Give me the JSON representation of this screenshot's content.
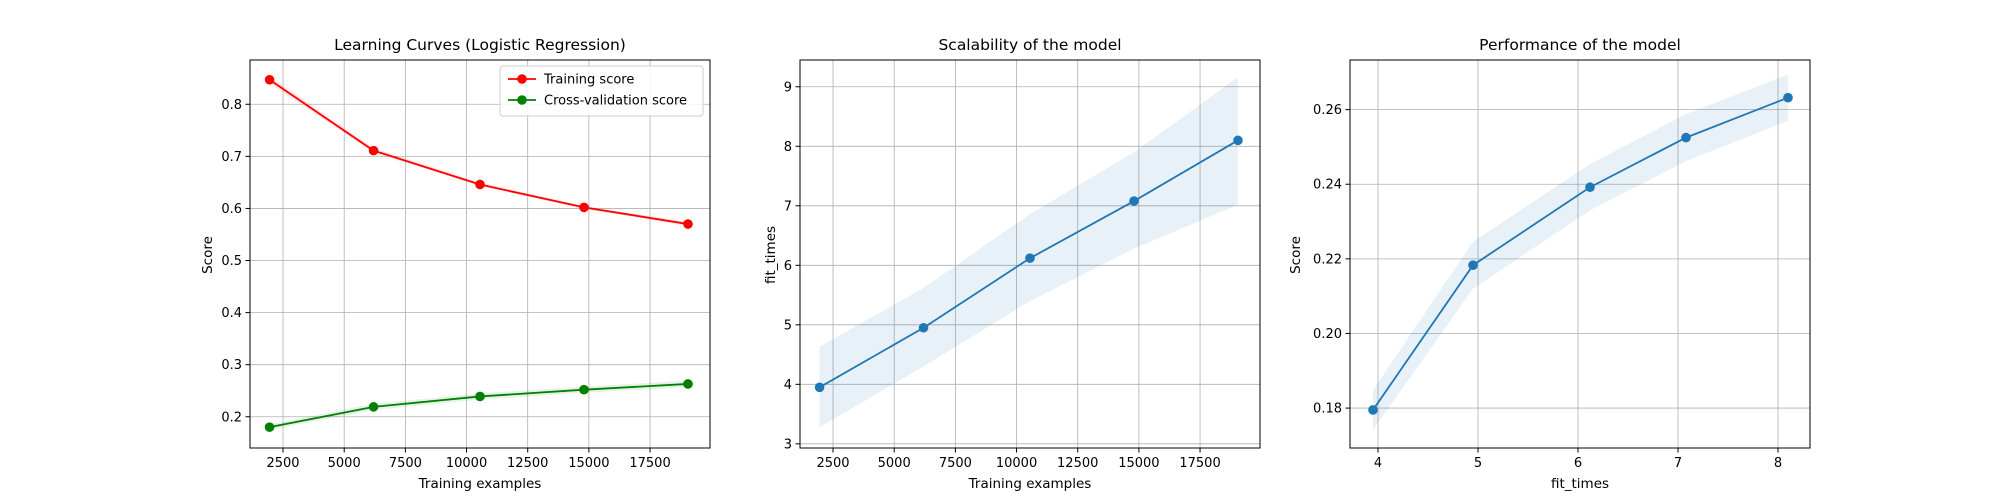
{
  "chart_data": [
    {
      "type": "line",
      "title": "Learning Curves (Logistic Regression)",
      "xlabel": "Training examples",
      "ylabel": "Score",
      "xlim": [
        1150,
        19950
      ],
      "ylim": [
        0.14,
        0.885
      ],
      "xticks": [
        2500,
        5000,
        7500,
        10000,
        12500,
        15000,
        17500
      ],
      "xtick_labels": [
        "2500",
        "5000",
        "7500",
        "10000",
        "12500",
        "15000",
        "17500"
      ],
      "yticks": [
        0.2,
        0.3,
        0.4,
        0.5,
        0.6,
        0.7,
        0.8
      ],
      "ytick_labels": [
        "0.2",
        "0.3",
        "0.4",
        "0.5",
        "0.6",
        "0.7",
        "0.8"
      ],
      "grid": true,
      "legend": "upper right",
      "x": [
        1950,
        6200,
        10550,
        14800,
        19050
      ],
      "series": [
        {
          "name": "Training score",
          "color": "#ff0000",
          "values": [
            0.847,
            0.711,
            0.646,
            0.602,
            0.57
          ],
          "band_low": [
            0.84,
            0.707,
            0.643,
            0.599,
            0.566
          ],
          "band_high": [
            0.854,
            0.716,
            0.65,
            0.605,
            0.574
          ]
        },
        {
          "name": "Cross-validation score",
          "color": "#008000",
          "values": [
            0.18,
            0.219,
            0.239,
            0.252,
            0.263
          ],
          "band_low": [
            0.175,
            0.213,
            0.233,
            0.246,
            0.257
          ],
          "band_high": [
            0.185,
            0.225,
            0.245,
            0.258,
            0.269
          ]
        }
      ]
    },
    {
      "type": "line",
      "title": "Scalability of the model",
      "xlabel": "Training examples",
      "ylabel": "fit_times",
      "xlim": [
        1150,
        19950
      ],
      "ylim": [
        2.93,
        9.45
      ],
      "xticks": [
        2500,
        5000,
        7500,
        10000,
        12500,
        15000,
        17500
      ],
      "xtick_labels": [
        "2500",
        "5000",
        "7500",
        "10000",
        "12500",
        "15000",
        "17500"
      ],
      "yticks": [
        3,
        4,
        5,
        6,
        7,
        8,
        9
      ],
      "ytick_labels": [
        "3",
        "4",
        "5",
        "6",
        "7",
        "8",
        "9"
      ],
      "grid": true,
      "x": [
        1950,
        6200,
        10550,
        14800,
        19050
      ],
      "series": [
        {
          "color": "#1f77b4",
          "values": [
            3.95,
            4.95,
            6.12,
            7.08,
            8.1
          ],
          "band_low": [
            3.28,
            4.3,
            5.4,
            6.28,
            7.02
          ],
          "band_high": [
            4.63,
            5.62,
            6.86,
            7.9,
            9.16
          ]
        }
      ]
    },
    {
      "type": "line",
      "title": "Performance of the model",
      "xlabel": "fit_times",
      "ylabel": "Score",
      "xlim": [
        3.72,
        8.32
      ],
      "ylim": [
        0.1693,
        0.2733
      ],
      "xticks": [
        4,
        5,
        6,
        7,
        8
      ],
      "xtick_labels": [
        "4",
        "5",
        "6",
        "7",
        "8"
      ],
      "yticks": [
        0.18,
        0.2,
        0.22,
        0.24,
        0.26
      ],
      "ytick_labels": [
        "0.18",
        "0.20",
        "0.22",
        "0.24",
        "0.26"
      ],
      "grid": true,
      "x": [
        3.95,
        4.95,
        6.12,
        7.08,
        8.1
      ],
      "series": [
        {
          "color": "#1f77b4",
          "values": [
            0.1795,
            0.2183,
            0.2392,
            0.2525,
            0.2632
          ],
          "band_low": [
            0.1742,
            0.212,
            0.233,
            0.2462,
            0.257
          ],
          "band_high": [
            0.1848,
            0.2246,
            0.2454,
            0.2588,
            0.2694
          ]
        }
      ]
    }
  ]
}
